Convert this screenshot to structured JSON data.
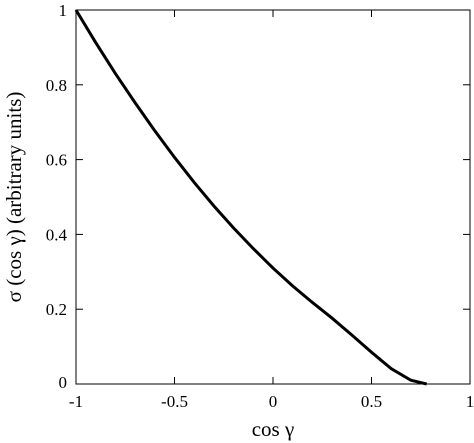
{
  "chart_data": {
    "type": "line",
    "title": "",
    "xlabel": "cos γ",
    "ylabel": "σ (cos γ) (arbitrary units)",
    "xlim": [
      -1,
      1
    ],
    "ylim": [
      0,
      1
    ],
    "xticks": [
      -1,
      -0.5,
      0,
      0.5,
      1
    ],
    "yticks": [
      0,
      0.2,
      0.4,
      0.6,
      0.8,
      1
    ],
    "xtick_labels": [
      "-1",
      "-0.5",
      "0",
      "0.5",
      "1"
    ],
    "ytick_labels": [
      "0",
      "0.2",
      "0.4",
      "0.6",
      "0.8",
      "1"
    ],
    "grid": false,
    "series": [
      {
        "color": "#000000",
        "x": [
          -1.0,
          -0.9,
          -0.8,
          -0.7,
          -0.6,
          -0.5,
          -0.4,
          -0.3,
          -0.2,
          -0.1,
          0.0,
          0.1,
          0.2,
          0.3,
          0.4,
          0.5,
          0.6,
          0.7,
          0.78
        ],
        "y": [
          1.0,
          0.913,
          0.83,
          0.752,
          0.677,
          0.606,
          0.539,
          0.476,
          0.417,
          0.362,
          0.31,
          0.262,
          0.218,
          0.176,
          0.131,
          0.085,
          0.041,
          0.01,
          0.0
        ]
      }
    ]
  }
}
